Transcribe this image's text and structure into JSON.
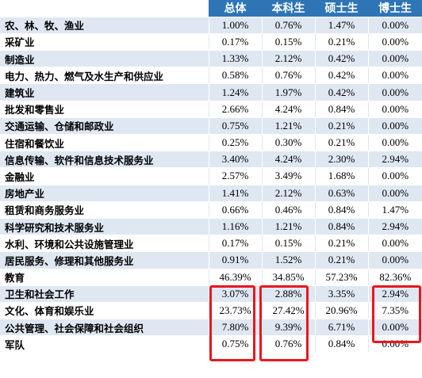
{
  "headers": [
    "",
    "总体",
    "本科生",
    "硕士生",
    "博士生"
  ],
  "rows": [
    {
      "name": "农、林、牧、渔业",
      "values": [
        "1.00%",
        "0.76%",
        "1.47%",
        "0.00%"
      ]
    },
    {
      "name": "采矿业",
      "values": [
        "0.17%",
        "0.15%",
        "0.21%",
        "0.00%"
      ]
    },
    {
      "name": "制造业",
      "values": [
        "1.33%",
        "2.12%",
        "0.42%",
        "0.00%"
      ]
    },
    {
      "name": "电力、热力、燃气及水生产和供应业",
      "values": [
        "0.58%",
        "0.76%",
        "0.42%",
        "0.00%"
      ]
    },
    {
      "name": "建筑业",
      "values": [
        "1.24%",
        "1.97%",
        "0.42%",
        "0.00%"
      ]
    },
    {
      "name": "批发和零售业",
      "values": [
        "2.66%",
        "4.24%",
        "0.84%",
        "0.00%"
      ]
    },
    {
      "name": "交通运输、仓储和邮政业",
      "values": [
        "0.75%",
        "1.21%",
        "0.21%",
        "0.00%"
      ]
    },
    {
      "name": "住宿和餐饮业",
      "values": [
        "0.25%",
        "0.30%",
        "0.21%",
        "0.00%"
      ]
    },
    {
      "name": "信息传输、软件和信息技术服务业",
      "values": [
        "3.40%",
        "4.24%",
        "2.30%",
        "2.94%"
      ]
    },
    {
      "name": "金融业",
      "values": [
        "2.57%",
        "3.49%",
        "1.68%",
        "0.00%"
      ]
    },
    {
      "name": "房地产业",
      "values": [
        "1.41%",
        "2.12%",
        "0.63%",
        "0.00%"
      ]
    },
    {
      "name": "租赁和商务服务业",
      "values": [
        "0.66%",
        "0.46%",
        "0.84%",
        "1.47%"
      ]
    },
    {
      "name": "科学研究和技术服务业",
      "values": [
        "1.16%",
        "1.21%",
        "0.84%",
        "2.94%"
      ]
    },
    {
      "name": "水利、环境和公共设施管理业",
      "values": [
        "0.17%",
        "0.15%",
        "0.21%",
        "0.00%"
      ]
    },
    {
      "name": "居民服务、修理和其他服务业",
      "values": [
        "0.91%",
        "1.52%",
        "0.21%",
        "0.00%"
      ]
    },
    {
      "name": "教育",
      "values": [
        "46.39%",
        "34.85%",
        "57.23%",
        "82.36%"
      ]
    },
    {
      "name": "卫生和社会工作",
      "values": [
        "3.07%",
        "2.88%",
        "3.35%",
        "2.94%"
      ]
    },
    {
      "name": "文化、体育和娱乐业",
      "values": [
        "23.73%",
        "27.42%",
        "20.96%",
        "7.35%"
      ]
    },
    {
      "name": "公共管理、社会保障和社会组织",
      "values": [
        "7.80%",
        "9.39%",
        "6.71%",
        "0.00%"
      ]
    },
    {
      "name": "军队",
      "values": [
        "0.75%",
        "0.76%",
        "0.84%",
        "0.00%"
      ]
    }
  ],
  "highlight_color": "#e8171d",
  "header_color": "#2e75b6",
  "stripe_color": "#dfe7f3"
}
